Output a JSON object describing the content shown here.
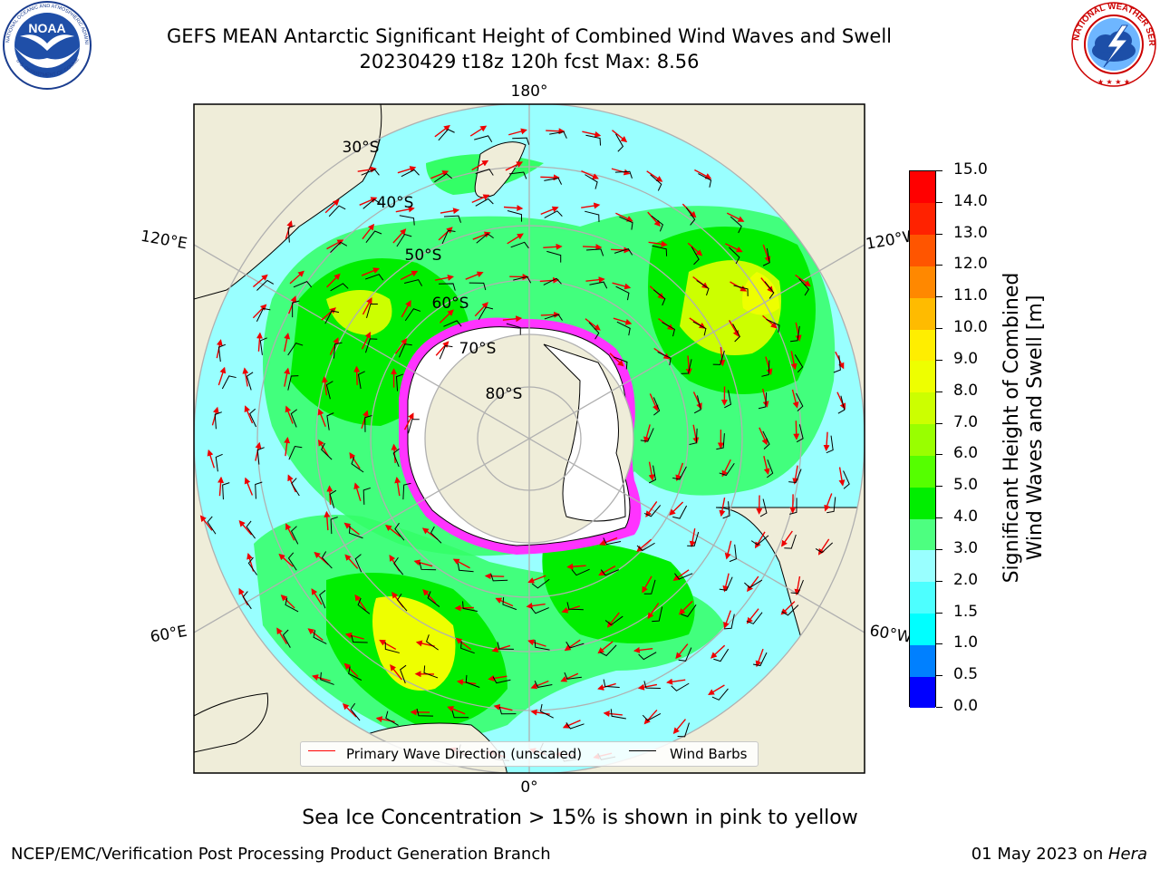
{
  "title": {
    "line1": "GEFS MEAN Antarctic Significant Height of Combined Wind Waves and Swell",
    "line2": "20230429 t18z 120h fcst   Max: 8.56"
  },
  "logos": {
    "noaa": {
      "text": "NOAA",
      "ring_text": "NATIONAL OCEANIC AND ATMOSPHERIC ADMINISTRATION",
      "bottom_text": "U.S. DEPARTMENT OF COMMERCE",
      "icon": "noaa-seagull-logo"
    },
    "nws": {
      "ring_text": "NATIONAL WEATHER SERVICE",
      "icon": "nws-lightning-cloud-logo"
    }
  },
  "map": {
    "projection": "south-polar-stereographic",
    "longitude_labels": {
      "top": "180°",
      "bottom": "0°",
      "upper_left": "120°E",
      "upper_right": "120°W",
      "lower_left": "60°E",
      "lower_right": "60°W"
    },
    "latitude_labels": [
      "30°S",
      "40°S",
      "50°S",
      "60°S",
      "70°S",
      "80°S"
    ],
    "colors": {
      "land": "#efedd9",
      "antarctica": "#ffffff",
      "ocean_low": "#99ffff",
      "ocean_mid": "#33ff66",
      "sea_ice": "#ff33ff",
      "arrow": "#ee0000",
      "barb": "#000000",
      "grid": "#b0b0b0"
    }
  },
  "legend": {
    "wave_direction": "Primary Wave Direction (unscaled)",
    "wind_barbs": "Wind Barbs",
    "wave_color": "#ff0000",
    "barb_color": "#000000"
  },
  "colorbar": {
    "label_line1": "Significant Height of Combined",
    "label_line2": "Wind Waves and Swell [m]",
    "ticks": [
      "0.0",
      "0.5",
      "1.0",
      "1.5",
      "2.0",
      "3.0",
      "4.0",
      "5.0",
      "6.0",
      "7.0",
      "8.0",
      "9.0",
      "10.0",
      "11.0",
      "12.0",
      "13.0",
      "14.0",
      "15.0"
    ],
    "colors": [
      "#0000ff",
      "#0080ff",
      "#00ffff",
      "#4dffff",
      "#99ffff",
      "#4dff80",
      "#00ee00",
      "#55ff00",
      "#99ff00",
      "#ccff00",
      "#eeff00",
      "#ffee00",
      "#ffbb00",
      "#ff8800",
      "#ff5500",
      "#ff2200",
      "#ff0000"
    ]
  },
  "caption": "Sea Ice Concentration > 15% is shown in pink to yellow",
  "footer": {
    "left": "NCEP/EMC/Verification Post Processing Product Generation Branch",
    "date": "01 May 2023 on ",
    "host": "Hera"
  }
}
